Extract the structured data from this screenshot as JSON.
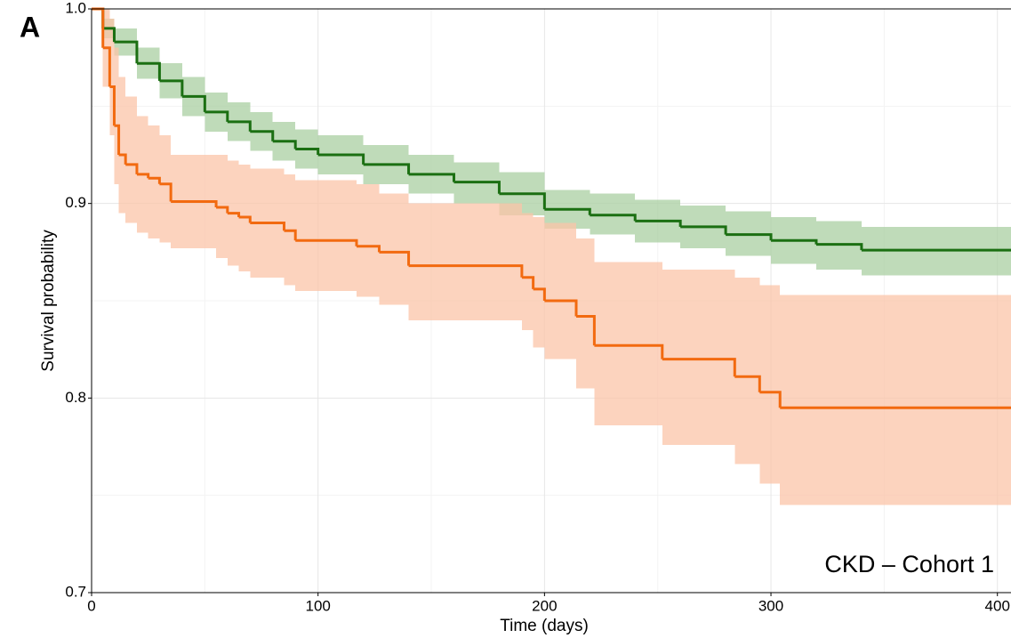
{
  "panel_label": "A",
  "chart_data": {
    "type": "km",
    "xlabel": "Time (days)",
    "ylabel": "Survival probability",
    "annotation": "CKD – Cohort 1",
    "xlim": [
      0,
      406
    ],
    "ylim": [
      0.7,
      1.0
    ],
    "xticks": [
      0,
      100,
      200,
      300,
      400
    ],
    "yticks": [
      {
        "value": 1,
        "label": "1.0"
      },
      0.9,
      0.8,
      0.7
    ],
    "minor_xticks": [
      50,
      150,
      250,
      350
    ],
    "minor_yticks": [
      0.75,
      0.85,
      0.95
    ],
    "grid": true,
    "series": [
      {
        "color": "#1b6f12",
        "band_color": "#a9cfa1",
        "x": [
          0,
          5,
          10,
          20,
          30,
          40,
          50,
          60,
          70,
          80,
          90,
          100,
          120,
          140,
          160,
          180,
          200,
          220,
          240,
          260,
          280,
          300,
          320,
          340
        ],
        "values": [
          1,
          0.99,
          0.983,
          0.972,
          0.963,
          0.955,
          0.947,
          0.942,
          0.937,
          0.932,
          0.928,
          0.925,
          0.92,
          0.915,
          0.911,
          0.905,
          0.897,
          0.894,
          0.891,
          0.888,
          0.884,
          0.881,
          0.879,
          0.876
        ],
        "upper": [
          1,
          0.995,
          0.99,
          0.98,
          0.972,
          0.965,
          0.957,
          0.952,
          0.947,
          0.942,
          0.938,
          0.935,
          0.93,
          0.925,
          0.921,
          0.916,
          0.907,
          0.905,
          0.902,
          0.899,
          0.896,
          0.893,
          0.891,
          0.888
        ],
        "lower": [
          1,
          0.985,
          0.976,
          0.964,
          0.954,
          0.945,
          0.937,
          0.932,
          0.927,
          0.922,
          0.918,
          0.915,
          0.91,
          0.905,
          0.9,
          0.894,
          0.887,
          0.884,
          0.88,
          0.877,
          0.873,
          0.869,
          0.866,
          0.863
        ]
      },
      {
        "color": "#f26a10",
        "band_color": "#fbc4a8",
        "x": [
          0,
          5,
          8,
          10,
          12,
          15,
          20,
          25,
          30,
          35,
          55,
          60,
          65,
          70,
          85,
          90,
          117,
          127,
          140,
          190,
          195,
          200,
          214,
          222,
          252,
          284,
          295,
          304
        ],
        "values": [
          1,
          0.98,
          0.96,
          0.94,
          0.925,
          0.92,
          0.915,
          0.913,
          0.91,
          0.901,
          0.898,
          0.895,
          0.893,
          0.89,
          0.886,
          0.881,
          0.878,
          0.875,
          0.868,
          0.862,
          0.856,
          0.85,
          0.842,
          0.827,
          0.82,
          0.811,
          0.803,
          0.795
        ],
        "upper": [
          1,
          1,
          0.995,
          0.98,
          0.965,
          0.955,
          0.945,
          0.94,
          0.935,
          0.925,
          0.925,
          0.922,
          0.92,
          0.918,
          0.915,
          0.912,
          0.91,
          0.905,
          0.9,
          0.895,
          0.893,
          0.89,
          0.882,
          0.87,
          0.866,
          0.862,
          0.858,
          0.853
        ],
        "lower": [
          1,
          0.96,
          0.935,
          0.91,
          0.895,
          0.89,
          0.885,
          0.882,
          0.88,
          0.877,
          0.872,
          0.868,
          0.865,
          0.862,
          0.858,
          0.855,
          0.852,
          0.848,
          0.84,
          0.835,
          0.826,
          0.82,
          0.805,
          0.786,
          0.776,
          0.766,
          0.756,
          0.745
        ]
      }
    ]
  }
}
